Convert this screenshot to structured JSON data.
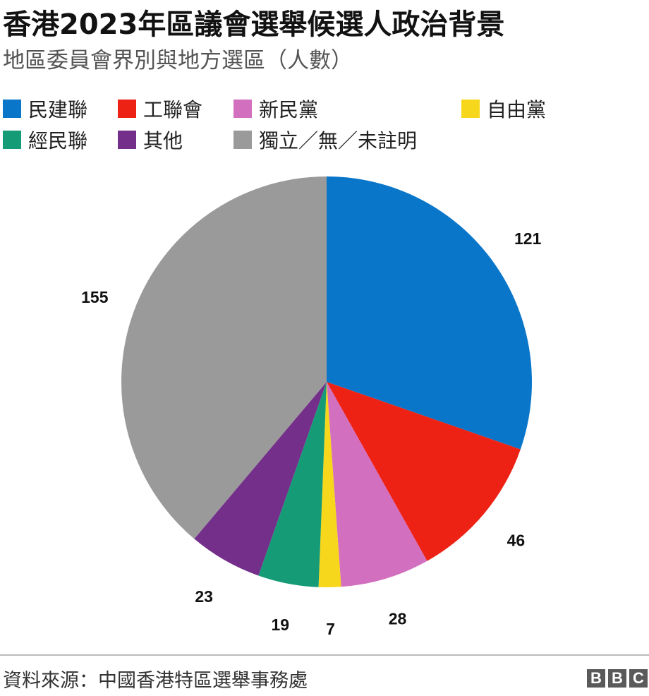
{
  "title": "香港2023年區議會選舉候選人政治背景",
  "subtitle": "地區委員會界別與地方選區（人數）",
  "source": "資料來源：中國香港特區選舉事務處",
  "logo": [
    "B",
    "B",
    "C"
  ],
  "chart_data": {
    "type": "pie",
    "start_angle_deg": 0,
    "direction": "clockwise",
    "legend_position": "top",
    "slices": [
      {
        "label": "民建聯",
        "value": 121,
        "color": "#0a76c9"
      },
      {
        "label": "工聯會",
        "value": 46,
        "color": "#ed2215"
      },
      {
        "label": "新民黨",
        "value": 28,
        "color": "#d36fbf"
      },
      {
        "label": "自由黨",
        "value": 7,
        "color": "#f6d71b"
      },
      {
        "label": "經民聯",
        "value": 19,
        "color": "#169b77"
      },
      {
        "label": "其他",
        "value": 23,
        "color": "#732f89"
      },
      {
        "label": "獨立／無／未註明",
        "value": 155,
        "color": "#9a9a9a"
      }
    ]
  }
}
